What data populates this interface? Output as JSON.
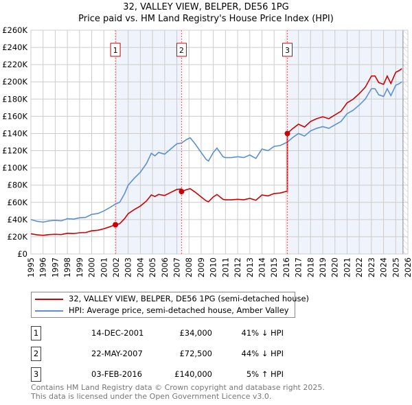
{
  "title": "32, VALLEY VIEW, BELPER, DE56 1PG",
  "subtitle": "Price paid vs. HM Land Registry's House Price Index (HPI)",
  "chart_data": {
    "type": "line",
    "xlim": [
      1995,
      2026
    ],
    "ylim": [
      0,
      260000
    ],
    "yticks": [
      0,
      20000,
      40000,
      60000,
      80000,
      100000,
      120000,
      140000,
      160000,
      180000,
      200000,
      220000,
      240000,
      260000
    ],
    "ytick_labels": [
      "£0",
      "£20K",
      "£40K",
      "£60K",
      "£80K",
      "£100K",
      "£120K",
      "£140K",
      "£160K",
      "£180K",
      "£200K",
      "£220K",
      "£240K",
      "£260K"
    ],
    "xticks": [
      1995,
      1996,
      1997,
      1998,
      1999,
      2000,
      2001,
      2002,
      2003,
      2004,
      2005,
      2006,
      2007,
      2008,
      2009,
      2010,
      2011,
      2012,
      2013,
      2014,
      2015,
      2016,
      2017,
      2018,
      2019,
      2020,
      2021,
      2022,
      2023,
      2024,
      2025,
      2026
    ],
    "grid": true,
    "colors": {
      "property": "#cc0000",
      "hpi": "#5b8fd0",
      "shade": "#eef3fc"
    },
    "hpi_series": {
      "name": "HPI: Average price, semi-detached house, Amber Valley",
      "x": [
        1995,
        1995.5,
        1996,
        1996.5,
        1997,
        1997.5,
        1998,
        1998.5,
        1999,
        1999.5,
        2000,
        2000.5,
        2001,
        2001.5,
        2001.95,
        2002.3,
        2002.7,
        2003,
        2003.5,
        2004,
        2004.5,
        2004.9,
        2005.2,
        2005.5,
        2006,
        2006.5,
        2007,
        2007.4,
        2007.8,
        2008.1,
        2008.5,
        2009,
        2009.4,
        2009.6,
        2010,
        2010.3,
        2010.8,
        2011,
        2011.5,
        2012,
        2012.5,
        2013,
        2013.5,
        2014,
        2014.5,
        2015,
        2015.5,
        2016.09,
        2016.5,
        2017,
        2017.5,
        2018,
        2018.5,
        2019,
        2019.5,
        2020,
        2020.5,
        2021,
        2021.5,
        2022,
        2022.5,
        2023,
        2023.3,
        2023.6,
        2024,
        2024.3,
        2024.6,
        2025,
        2025.3,
        2025.5
      ],
      "y": [
        40000,
        38000,
        37000,
        38500,
        39000,
        38500,
        41000,
        40500,
        42000,
        42500,
        46000,
        47000,
        50000,
        54000,
        58000,
        60000,
        70000,
        80000,
        88000,
        95000,
        105000,
        117000,
        114000,
        118000,
        116000,
        122000,
        128000,
        129000,
        133000,
        135000,
        128000,
        118000,
        110000,
        108000,
        118000,
        123000,
        113000,
        112000,
        112000,
        113000,
        112000,
        115000,
        111000,
        122000,
        120000,
        125000,
        126000,
        130000,
        135000,
        140000,
        137000,
        143000,
        146000,
        148000,
        146000,
        150000,
        154000,
        163000,
        167000,
        173000,
        180000,
        192000,
        192000,
        185000,
        183000,
        192000,
        184000,
        196000,
        198000,
        200000
      ]
    },
    "property_series": {
      "name": "32, VALLEY VIEW, BELPER, DE56 1PG (semi-detached house)"
    },
    "sales": [
      {
        "n": "1",
        "x": 2001.95,
        "date": "14-DEC-2001",
        "price": 34000,
        "price_label": "£34,000",
        "hpi": "41% ↓ HPI"
      },
      {
        "n": "2",
        "x": 2007.39,
        "date": "22-MAY-2007",
        "price": 72500,
        "price_label": "£72,500",
        "hpi": "44% ↓ HPI"
      },
      {
        "n": "3",
        "x": 2016.09,
        "date": "03-FEB-2016",
        "price": 140000,
        "price_label": "£140,000",
        "hpi": "5% ↑ HPI"
      }
    ],
    "shaded": [
      [
        2001.95,
        2007.39
      ],
      [
        2016.09,
        2025.6
      ]
    ],
    "forecast_from": 2025.6
  },
  "legend": {
    "property": "32, VALLEY VIEW, BELPER, DE56 1PG (semi-detached house)",
    "hpi": "HPI: Average price, semi-detached house, Amber Valley"
  },
  "footer": {
    "line1": "Contains HM Land Registry data © Crown copyright and database right 2025.",
    "line2": "This data is licensed under the Open Government Licence v3.0."
  }
}
